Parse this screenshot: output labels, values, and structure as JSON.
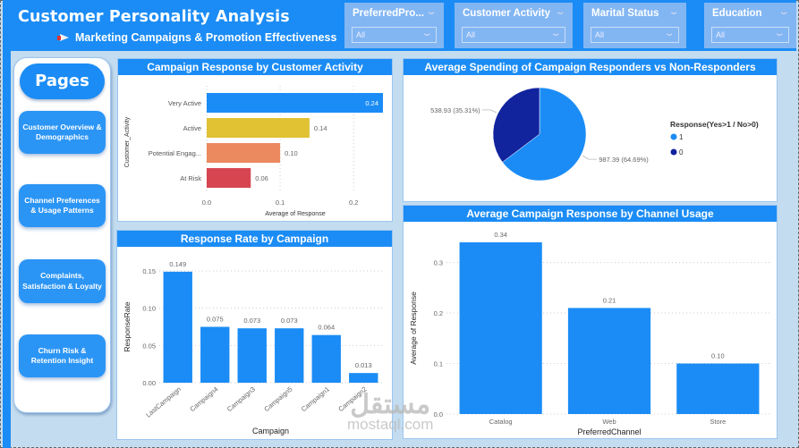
{
  "header": {
    "title": "Customer Personality Analysis",
    "subtitle": "Marketing Campaigns & Promotion Effectiveness",
    "subtitle_icon": "megaphone-icon"
  },
  "slicers": [
    {
      "label": "PreferredPro...",
      "value": "All"
    },
    {
      "label": "Customer Activity",
      "value": "All"
    },
    {
      "label": "Marital Status",
      "value": "All"
    },
    {
      "label": "Education",
      "value": "All"
    }
  ],
  "pages": {
    "title": "Pages",
    "items": [
      {
        "label": "Customer Overview & Demographics"
      },
      {
        "label": "Channel Preferences & Usage Patterns"
      },
      {
        "label": "Complaints, Satisfaction & Loyalty"
      },
      {
        "label": "Churn Risk & Retention Insight"
      }
    ]
  },
  "watermark": {
    "arabic": "مستقل",
    "latin": "mostaql.com"
  },
  "colors": {
    "primary": "#1b8cf5",
    "dark_blue": "#12239e",
    "yellow": "#e0c233",
    "orange": "#eb895f",
    "red": "#d64550"
  },
  "chart_data": [
    {
      "id": "activity",
      "type": "bar",
      "orientation": "horizontal",
      "title": "Campaign Response by Customer Activity",
      "categories": [
        "Very Active",
        "Active",
        "Potential Engag...",
        "At Risk"
      ],
      "values": [
        0.24,
        0.14,
        0.1,
        0.06
      ],
      "data_labels": [
        "0.24",
        "0.14",
        "0.10",
        "0.06"
      ],
      "colors": [
        "#1b8cf5",
        "#e0c233",
        "#eb895f",
        "#d64550"
      ],
      "xlabel": "Average of Response",
      "ylabel": "Customer_Activity",
      "xlim": [
        0,
        0.24
      ],
      "xticks": [
        "0.0",
        "0.1",
        "0.2"
      ],
      "xtick_values": [
        0,
        0.1,
        0.2
      ],
      "grid": true
    },
    {
      "id": "spending",
      "type": "pie",
      "title": "Average Spending of Campaign Responders vs Non-Responders",
      "legend_title": "Response(Yes>1 / No>0)",
      "legend_position": "right",
      "slices": [
        {
          "name": "1",
          "value": 987.39,
          "percent": 64.69,
          "label": "987.39 (64.69%)",
          "color": "#1b8cf5"
        },
        {
          "name": "0",
          "value": 538.93,
          "percent": 35.31,
          "label": "538.93 (35.31%)",
          "color": "#12239e"
        }
      ]
    },
    {
      "id": "campaign",
      "type": "bar",
      "title": "Response Rate by Campaign",
      "categories": [
        "LastCampaign",
        "Campaign4",
        "Campaign3",
        "Campaign5",
        "Campaign1",
        "Campaign2"
      ],
      "values": [
        0.149,
        0.075,
        0.073,
        0.073,
        0.064,
        0.013
      ],
      "data_labels": [
        "0.149",
        "0.075",
        "0.073",
        "0.073",
        "0.064",
        "0.013"
      ],
      "xlabel": "Campaign",
      "ylabel": "ResponseRate",
      "ylim": [
        0,
        0.15
      ],
      "yticks": [
        "0.00",
        "0.05",
        "0.10",
        "0.15"
      ],
      "ytick_values": [
        0,
        0.05,
        0.1,
        0.15
      ],
      "grid": true
    },
    {
      "id": "channel",
      "type": "bar",
      "title": "Average Campaign Response by Channel Usage",
      "categories": [
        "Catalog",
        "Web",
        "Store"
      ],
      "values": [
        0.34,
        0.21,
        0.1
      ],
      "data_labels": [
        "0.34",
        "0.21",
        "0.10"
      ],
      "xlabel": "PreferredChannel",
      "ylabel": "Average of Response",
      "ylim": [
        0,
        0.34
      ],
      "yticks": [
        "0.0",
        "0.1",
        "0.2",
        "0.3"
      ],
      "ytick_values": [
        0,
        0.1,
        0.2,
        0.3
      ],
      "grid": true
    }
  ]
}
